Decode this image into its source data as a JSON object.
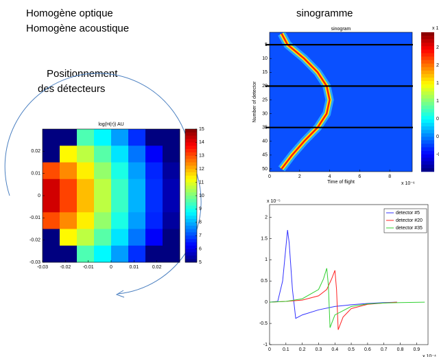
{
  "slide": {
    "texts": [
      "Homogène optique",
      "Homogène acoustique",
      "Positionnement",
      "des détecteurs",
      "sinogramme"
    ]
  },
  "chart_data": [
    {
      "type": "heatmap",
      "title": "log(H(r)) AU",
      "xlim": [
        -0.03,
        0.03
      ],
      "ylim": [
        -0.03,
        0.03
      ],
      "xticks": [
        -0.03,
        -0.02,
        -0.01,
        0,
        0.01,
        0.02
      ],
      "yticks": [
        -0.03,
        -0.02,
        -0.01,
        0,
        0.01,
        0.02
      ],
      "zlim": [
        5,
        15
      ],
      "colorbar_ticks": [
        5,
        6,
        7,
        8,
        9,
        10,
        11,
        12,
        13,
        14,
        15
      ],
      "z": [
        [
          5,
          5,
          9.5,
          8.7,
          7.8,
          6.7,
          5,
          5
        ],
        [
          5,
          11.3,
          10.6,
          9.6,
          8.5,
          7.4,
          6.2,
          5
        ],
        [
          13.0,
          12.4,
          11.4,
          10.2,
          9.0,
          7.8,
          6.6,
          5.3
        ],
        [
          14.2,
          13.1,
          11.9,
          10.6,
          9.3,
          8.0,
          6.7,
          5.5
        ],
        [
          14.2,
          13.1,
          11.9,
          10.6,
          9.3,
          8.0,
          6.7,
          5.5
        ],
        [
          13.0,
          12.4,
          11.4,
          10.2,
          9.0,
          7.8,
          6.6,
          5.3
        ],
        [
          5,
          11.3,
          10.6,
          9.6,
          8.5,
          7.4,
          6.2,
          5
        ],
        [
          5,
          5,
          9.5,
          8.7,
          7.8,
          6.7,
          5,
          5
        ]
      ]
    },
    {
      "type": "sinogram",
      "title": "sinogram",
      "xlabel": "Time of flight",
      "ylabel": "Number of detector",
      "x_exponent_label": "x 10⁻⁶",
      "xlim": [
        0,
        9.5
      ],
      "ylim": [
        51,
        0.5
      ],
      "xticks": [
        0,
        2,
        4,
        6,
        8
      ],
      "yticks": [
        5,
        10,
        15,
        20,
        25,
        30,
        35,
        40,
        45,
        50
      ],
      "detectors": [
        1,
        5,
        10,
        15,
        20,
        25,
        30,
        35,
        40,
        45,
        50
      ],
      "series": [
        {
          "color": "#ff2000",
          "values": [
            0.8,
            1.2,
            2.3,
            3.2,
            3.8,
            4.0,
            3.8,
            3.2,
            2.3,
            1.5,
            0.8
          ]
        }
      ],
      "marked_detectors": [
        5,
        20,
        35
      ],
      "colorbar_header": "x 1",
      "colorbar_labels": [
        "2",
        "2",
        "1.",
        "1",
        "0.",
        "0",
        "-0"
      ]
    },
    {
      "type": "line",
      "y_exponent_label": "x 10⁻⁵",
      "x_exponent_label": "x 10⁻⁴",
      "xlim": [
        0,
        0.97
      ],
      "ylim": [
        -1,
        2.3
      ],
      "xticks": [
        0,
        0.1,
        0.2,
        0.3,
        0.4,
        0.5,
        0.6,
        0.7,
        0.8,
        0.9
      ],
      "yticks": [
        -1,
        -0.5,
        0,
        0.5,
        1,
        1.5,
        2
      ],
      "series": [
        {
          "name": "detector #5",
          "color": "#3030ff",
          "x": [
            0,
            0.05,
            0.08,
            0.1,
            0.11,
            0.12,
            0.14,
            0.16,
            0.2,
            0.3,
            0.4,
            0.5,
            0.6,
            0.7,
            0.78
          ],
          "values": [
            0,
            0.02,
            0.5,
            1.3,
            1.7,
            1.4,
            0.3,
            -0.38,
            -0.3,
            -0.18,
            -0.1,
            -0.06,
            -0.03,
            -0.01,
            0
          ]
        },
        {
          "name": "detector #20",
          "color": "#ff2020",
          "x": [
            0,
            0.1,
            0.2,
            0.3,
            0.35,
            0.38,
            0.4,
            0.41,
            0.42,
            0.45,
            0.5,
            0.6,
            0.7,
            0.78
          ],
          "values": [
            0,
            0.02,
            0.05,
            0.15,
            0.3,
            0.55,
            0.75,
            0.3,
            -0.65,
            -0.35,
            -0.15,
            -0.05,
            -0.02,
            0
          ]
        },
        {
          "name": "detector #35",
          "color": "#30d030",
          "x": [
            0,
            0.1,
            0.2,
            0.3,
            0.33,
            0.35,
            0.36,
            0.37,
            0.38,
            0.4,
            0.5,
            0.6,
            0.7,
            0.8,
            0.95
          ],
          "values": [
            0,
            0.02,
            0.08,
            0.3,
            0.55,
            0.8,
            0.4,
            -0.6,
            -0.5,
            -0.3,
            -0.1,
            -0.04,
            -0.02,
            -0.01,
            0
          ]
        }
      ]
    }
  ]
}
